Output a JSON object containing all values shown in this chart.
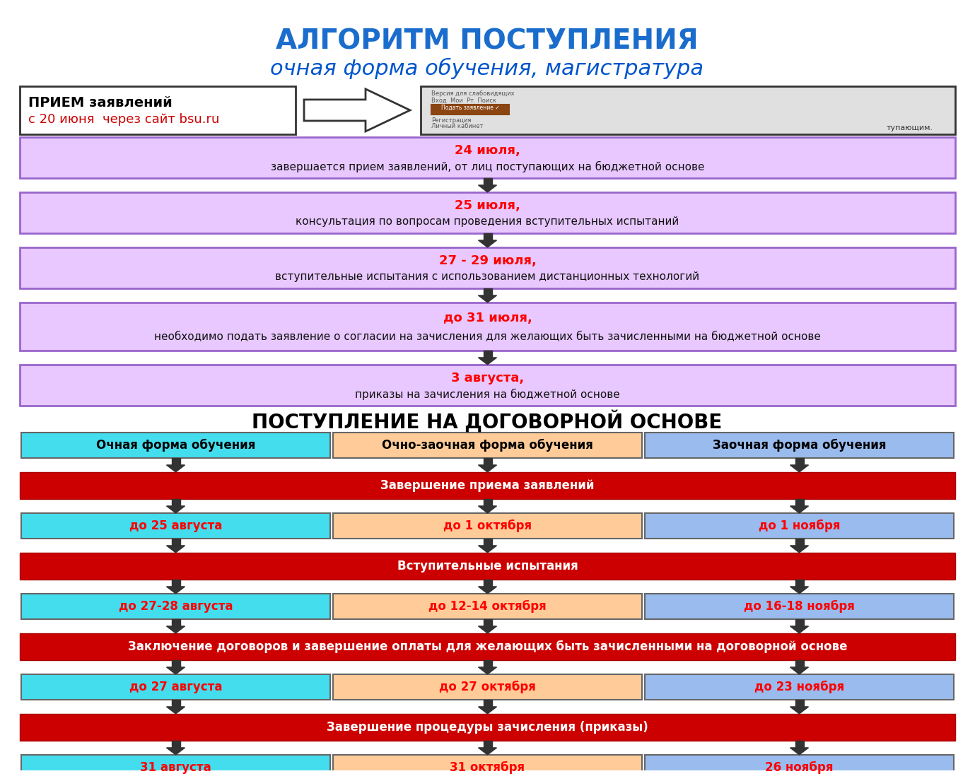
{
  "title1": "АЛГОРИТМ ПОСТУПЛЕНИЯ",
  "title2": "очная форма обучения, магистратура",
  "bg_color": "#ffffff",
  "purple_fc": "#e8c8ff",
  "purple_ec": "#9966cc",
  "red_bar_fc": "#cc0000",
  "red_bar_ec": "#aa0000",
  "cyan_fc": "#44ddee",
  "orange_fc": "#ffcc99",
  "blue_fc": "#99bbee",
  "section2_title": "ПОСТУПЛЕНИЕ НА ДОГОВОРНОЙ ОСНОВЕ",
  "top_boxes": [
    {
      "date": "24 июля,",
      "text": "завершается прием заявлений, от лиц поступающих на бюджетной основе"
    },
    {
      "date": "25 июля,",
      "text": "консультация по вопросам проведения вступительных испытаний"
    },
    {
      "date": "27 - 29 июля,",
      "text": "вступительные испытания с использованием дистанционных технологий"
    },
    {
      "date": "до 31 июля,",
      "text": "необходимо подать заявление о согласии на зачисления для желающих быть зачисленными на бюджетной основе"
    },
    {
      "date": "3 августа,",
      "text": "приказы на зачисления на бюджетной основе"
    }
  ],
  "col_headers": [
    "Очная форма обучения",
    "Очно-заочная форма обучения",
    "Заочная форма обучения"
  ],
  "col_colors": [
    "#44ddee",
    "#ffcc99",
    "#99bbee"
  ],
  "red_bars": [
    "Завершение приема заявлений",
    "Вступительные испытания",
    "Заключение договоров и завершение оплаты для желающих быть зачисленными на договорной основе",
    "Завершение процедуры зачисления (приказы)"
  ],
  "col_rows": [
    [
      "до 25 августа",
      "до 1 октября",
      "до 1 ноября"
    ],
    [
      "до 27-28 августа",
      "до 12-14 октября",
      "до 16-18 ноября"
    ],
    [
      "до 27 августа",
      "до 27 октября",
      "до 23 ноября"
    ],
    [
      "31 августа",
      "31 октября",
      "26 ноября"
    ]
  ]
}
